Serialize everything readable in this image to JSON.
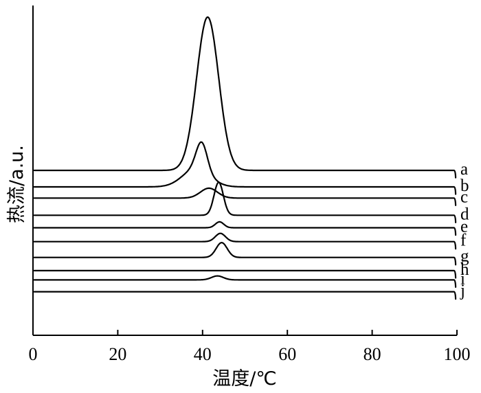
{
  "chart_data": {
    "type": "line",
    "title": "",
    "xlabel": "温度/℃",
    "ylabel": "热流/a.u.",
    "xlim": [
      0,
      100
    ],
    "ylim": [
      0,
      1
    ],
    "x_ticks": [
      0,
      20,
      40,
      60,
      80,
      100
    ],
    "grid": false,
    "legend": "labels at right end of each curve",
    "series": [
      {
        "name": "a",
        "baseline": 0.5,
        "peaks": [
          {
            "center": 41.2,
            "width": 2.6,
            "height": 0.465
          }
        ]
      },
      {
        "name": "b",
        "baseline": 0.45,
        "peaks": [
          {
            "center": 39.8,
            "width": 1.3,
            "height": 0.085
          },
          {
            "center": 38.5,
            "width": 3.2,
            "height": 0.055
          }
        ]
      },
      {
        "name": "c",
        "baseline": 0.416,
        "peaks": [
          {
            "center": 41.5,
            "width": 2.0,
            "height": 0.03
          }
        ]
      },
      {
        "name": "d",
        "baseline": 0.364,
        "peaks": [
          {
            "center": 43.8,
            "width": 1.1,
            "height": 0.1
          }
        ]
      },
      {
        "name": "e",
        "baseline": 0.326,
        "peaks": [
          {
            "center": 44.0,
            "width": 1.0,
            "height": 0.018
          }
        ]
      },
      {
        "name": "f",
        "baseline": 0.284,
        "peaks": [
          {
            "center": 44.2,
            "width": 1.2,
            "height": 0.025
          }
        ]
      },
      {
        "name": "g",
        "baseline": 0.236,
        "peaks": [
          {
            "center": 44.5,
            "width": 1.3,
            "height": 0.045
          }
        ]
      },
      {
        "name": "h",
        "baseline": 0.196,
        "peaks": []
      },
      {
        "name": "i",
        "baseline": 0.168,
        "peaks": [
          {
            "center": 43.5,
            "width": 1.4,
            "height": 0.012
          }
        ]
      },
      {
        "name": "j",
        "baseline": 0.132,
        "peaks": []
      }
    ]
  }
}
